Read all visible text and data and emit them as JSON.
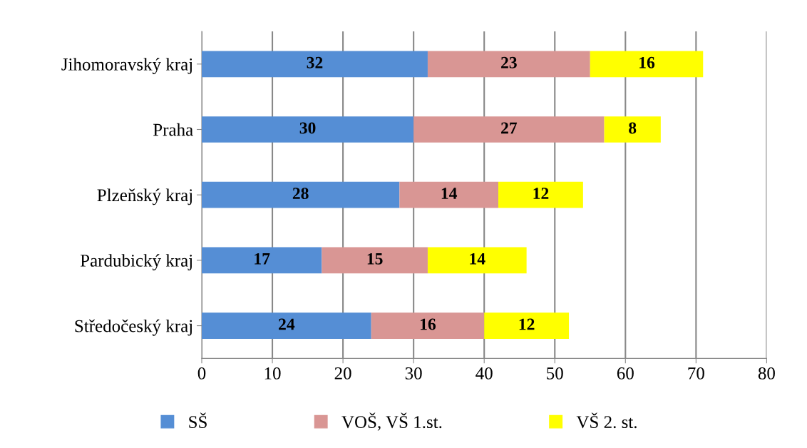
{
  "chart_data": {
    "type": "bar",
    "orientation": "horizontal",
    "stacked": true,
    "categories": [
      "Jihomoravský kraj",
      "Praha",
      "Plzeňský kraj",
      "Pardubický kraj",
      "Středočeský kraj"
    ],
    "series": [
      {
        "name": "SŠ",
        "color": "#558ed5",
        "values": [
          32,
          30,
          28,
          17,
          24
        ]
      },
      {
        "name": "VOŠ, VŠ 1.st.",
        "color": "#d99694",
        "values": [
          23,
          27,
          14,
          15,
          16
        ]
      },
      {
        "name": "VŠ 2. st.",
        "color": "#ffff00",
        "values": [
          16,
          8,
          12,
          14,
          12
        ]
      }
    ],
    "xlim": [
      0,
      80
    ],
    "xticks": [
      0,
      10,
      20,
      30,
      40,
      50,
      60,
      70,
      80
    ],
    "grid": "x",
    "legend": "bottom",
    "data_labels": true
  }
}
